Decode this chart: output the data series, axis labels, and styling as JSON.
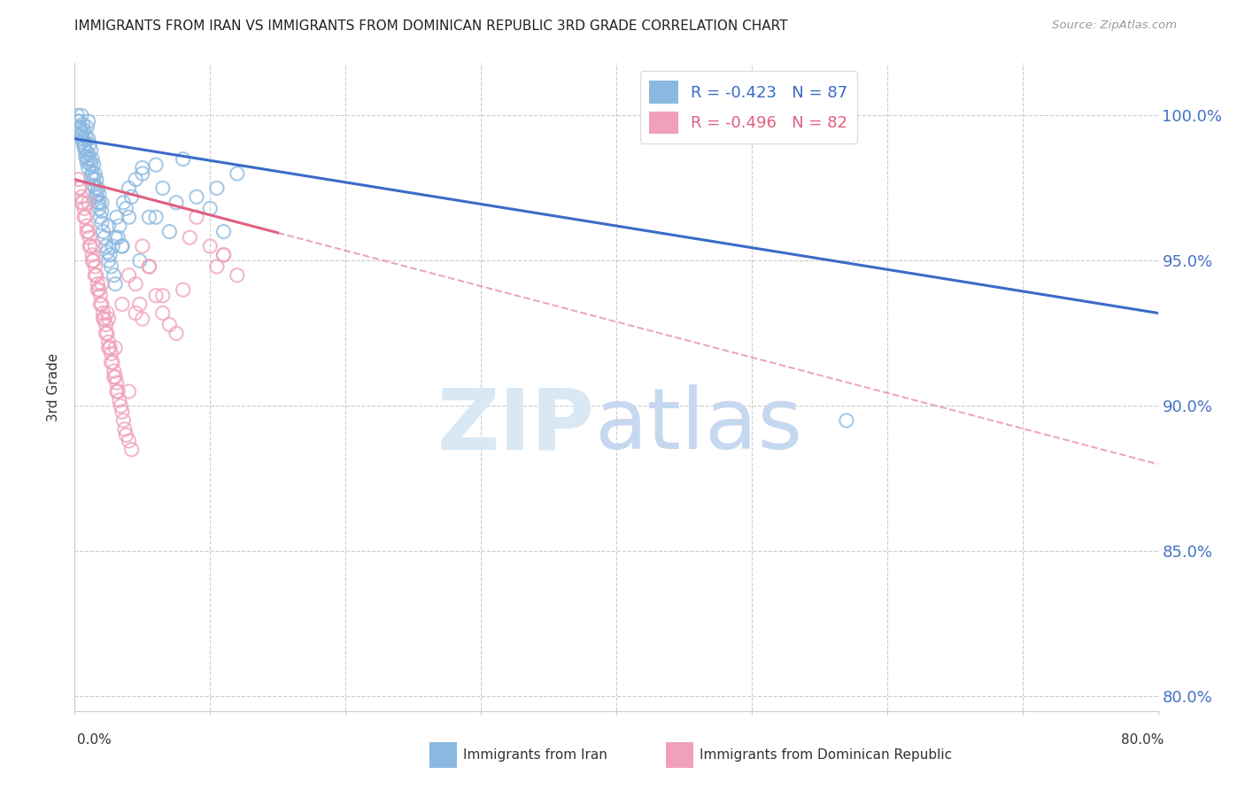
{
  "title": "IMMIGRANTS FROM IRAN VS IMMIGRANTS FROM DOMINICAN REPUBLIC 3RD GRADE CORRELATION CHART",
  "source": "Source: ZipAtlas.com",
  "ylabel": "3rd Grade",
  "xmin": 0.0,
  "xmax": 80.0,
  "ymin": 79.5,
  "ymax": 101.8,
  "iran_R": -0.423,
  "iran_N": 87,
  "dr_R": -0.496,
  "dr_N": 82,
  "iran_line_color": "#3a6bc8",
  "dr_line_color": "#e06080",
  "iran_scatter_color": "#8ab8e0",
  "dr_scatter_color": "#f0a0b8",
  "legend_iran_label": "R = -0.423   N = 87",
  "legend_dr_label": "R = -0.496   N = 82",
  "iran_line_x0": 0.0,
  "iran_line_y0": 99.2,
  "iran_line_x1": 80.0,
  "iran_line_y1": 93.2,
  "dr_line_x0": 0.0,
  "dr_line_y0": 97.8,
  "dr_line_x1": 80.0,
  "dr_line_y1": 88.0,
  "dr_solid_end_x": 15.0,
  "ytick_vals": [
    80.0,
    85.0,
    90.0,
    95.0,
    100.0
  ],
  "ytick_labels": [
    "80.0%",
    "85.0%",
    "90.0%",
    "95.0%",
    "100.0%"
  ],
  "iran_x": [
    0.3,
    0.4,
    0.5,
    0.5,
    0.6,
    0.6,
    0.7,
    0.7,
    0.8,
    0.8,
    0.9,
    0.9,
    1.0,
    1.0,
    1.0,
    1.1,
    1.1,
    1.2,
    1.2,
    1.3,
    1.3,
    1.4,
    1.4,
    1.5,
    1.5,
    1.6,
    1.6,
    1.7,
    1.7,
    1.8,
    1.8,
    1.9,
    2.0,
    2.0,
    2.1,
    2.2,
    2.3,
    2.4,
    2.5,
    2.6,
    2.7,
    2.8,
    2.9,
    3.0,
    3.1,
    3.2,
    3.3,
    3.5,
    3.6,
    3.8,
    4.0,
    4.2,
    4.5,
    4.8,
    5.0,
    5.5,
    6.0,
    6.5,
    7.0,
    7.5,
    8.0,
    9.0,
    10.0,
    10.5,
    11.0,
    12.0,
    0.2,
    0.3,
    0.4,
    0.5,
    0.6,
    0.7,
    0.8,
    0.9,
    1.0,
    1.2,
    1.4,
    1.6,
    1.8,
    2.0,
    2.5,
    3.0,
    3.5,
    4.0,
    5.0,
    6.0,
    57.0
  ],
  "iran_y": [
    99.8,
    99.5,
    99.3,
    100.0,
    99.7,
    99.2,
    99.5,
    99.0,
    99.3,
    98.8,
    99.6,
    98.5,
    99.2,
    98.7,
    99.8,
    98.5,
    99.0,
    98.3,
    98.8,
    98.0,
    98.5,
    97.8,
    98.3,
    97.5,
    98.0,
    97.2,
    97.8,
    97.0,
    97.5,
    96.8,
    97.3,
    96.5,
    96.3,
    97.0,
    96.0,
    95.8,
    95.5,
    95.3,
    95.0,
    95.2,
    94.8,
    95.5,
    94.5,
    94.2,
    96.5,
    95.8,
    96.2,
    95.5,
    97.0,
    96.8,
    96.5,
    97.2,
    97.8,
    95.0,
    98.0,
    96.5,
    98.3,
    97.5,
    96.0,
    97.0,
    98.5,
    97.2,
    96.8,
    97.5,
    96.0,
    98.0,
    100.0,
    99.8,
    99.6,
    99.4,
    99.1,
    98.9,
    98.6,
    98.4,
    98.2,
    97.9,
    97.6,
    97.3,
    97.0,
    96.7,
    96.2,
    95.8,
    95.5,
    97.5,
    98.2,
    96.5,
    89.5
  ],
  "dr_x": [
    0.3,
    0.4,
    0.5,
    0.6,
    0.7,
    0.8,
    0.9,
    1.0,
    1.0,
    1.1,
    1.2,
    1.3,
    1.4,
    1.5,
    1.5,
    1.6,
    1.7,
    1.8,
    1.9,
    2.0,
    2.0,
    2.1,
    2.2,
    2.3,
    2.4,
    2.4,
    2.5,
    2.5,
    2.6,
    2.7,
    2.8,
    2.9,
    3.0,
    3.0,
    3.1,
    3.2,
    3.3,
    3.4,
    3.5,
    3.6,
    3.7,
    3.8,
    4.0,
    4.0,
    4.2,
    4.5,
    4.8,
    5.0,
    5.0,
    5.5,
    6.0,
    6.5,
    7.0,
    7.5,
    8.0,
    9.0,
    10.0,
    10.5,
    11.0,
    12.0,
    0.3,
    0.5,
    0.7,
    0.9,
    1.1,
    1.3,
    1.5,
    1.7,
    1.9,
    2.1,
    2.3,
    2.5,
    2.7,
    2.9,
    3.1,
    3.5,
    4.0,
    4.5,
    5.5,
    6.5,
    8.5,
    11.0
  ],
  "dr_y": [
    97.8,
    97.5,
    97.2,
    97.0,
    96.8,
    96.5,
    96.2,
    96.0,
    97.0,
    95.8,
    95.5,
    95.2,
    95.0,
    94.8,
    95.5,
    94.5,
    94.2,
    94.0,
    93.8,
    93.5,
    94.2,
    93.2,
    93.0,
    92.8,
    92.5,
    93.2,
    92.2,
    93.0,
    92.0,
    91.8,
    91.5,
    91.2,
    91.0,
    92.0,
    90.8,
    90.5,
    90.2,
    90.0,
    89.8,
    89.5,
    89.2,
    89.0,
    88.8,
    90.5,
    88.5,
    94.2,
    93.5,
    93.0,
    95.5,
    94.8,
    93.8,
    93.2,
    92.8,
    92.5,
    94.0,
    96.5,
    95.5,
    94.8,
    95.2,
    94.5,
    97.5,
    97.0,
    96.5,
    96.0,
    95.5,
    95.0,
    94.5,
    94.0,
    93.5,
    93.0,
    92.5,
    92.0,
    91.5,
    91.0,
    90.5,
    93.5,
    94.5,
    93.2,
    94.8,
    93.8,
    95.8,
    95.2
  ]
}
